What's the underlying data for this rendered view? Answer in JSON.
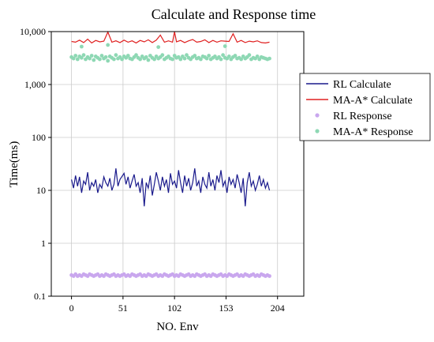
{
  "chart_data": {
    "type": "line",
    "title": "Calculate and Response time",
    "xlabel": "NO. Env",
    "ylabel": "Time(ms)",
    "x_ticks": [
      0,
      51,
      102,
      153,
      204
    ],
    "x_tick_labels": [
      "0",
      "51",
      "102",
      "153",
      "204"
    ],
    "xlim": [
      -20,
      230
    ],
    "y_scale": "log",
    "ylim": [
      0.1,
      10000
    ],
    "y_ticks": [
      0.1,
      1,
      10,
      100,
      1000,
      10000
    ],
    "y_tick_labels": [
      "0.1",
      "1",
      "10",
      "100",
      "1,000",
      "10,000"
    ],
    "grid": true,
    "legend_position": "right",
    "series": [
      {
        "name": "RL Calculate",
        "kind": "line",
        "color": "#1a1a8c",
        "x": [
          0,
          2,
          4,
          6,
          8,
          10,
          12,
          14,
          16,
          18,
          20,
          22,
          24,
          26,
          28,
          30,
          32,
          34,
          36,
          38,
          40,
          42,
          44,
          46,
          48,
          52,
          54,
          56,
          58,
          60,
          62,
          64,
          66,
          68,
          70,
          72,
          74,
          76,
          78,
          80,
          82,
          84,
          86,
          88,
          90,
          92,
          94,
          96,
          98,
          100,
          102,
          104,
          106,
          108,
          110,
          112,
          114,
          116,
          118,
          120,
          122,
          124,
          126,
          128,
          130,
          132,
          134,
          136,
          138,
          140,
          142,
          144,
          146,
          148,
          150,
          152,
          154,
          156,
          158,
          160,
          162,
          164,
          166,
          168,
          170,
          172,
          174,
          176,
          178,
          180,
          182,
          184,
          186,
          188,
          190,
          192,
          194,
          196
        ],
        "values": [
          16,
          11,
          19,
          12,
          18,
          9,
          15,
          13,
          22,
          10,
          14,
          12,
          16,
          9,
          13,
          11,
          18,
          14,
          12,
          17,
          10,
          13,
          26,
          12,
          16,
          21,
          13,
          18,
          11,
          15,
          20,
          12,
          14,
          9,
          17,
          5,
          14,
          11,
          19,
          8,
          13,
          22,
          15,
          10,
          18,
          12,
          16,
          9,
          21,
          13,
          15,
          11,
          24,
          14,
          9,
          19,
          12,
          17,
          10,
          14,
          26,
          12,
          15,
          9,
          18,
          13,
          11,
          22,
          12,
          16,
          10,
          19,
          14,
          24,
          12,
          15,
          9,
          18,
          13,
          16,
          11,
          20,
          14,
          9,
          17,
          5,
          14,
          22,
          12,
          15,
          10,
          13,
          19,
          12,
          16,
          11,
          14,
          10
        ]
      },
      {
        "name": "MA-A* Calculate",
        "kind": "line",
        "color": "#e02020",
        "x": [
          0,
          4,
          8,
          12,
          16,
          20,
          24,
          28,
          32,
          36,
          40,
          44,
          48,
          52,
          56,
          60,
          64,
          68,
          72,
          76,
          80,
          84,
          88,
          92,
          96,
          100,
          102,
          104,
          108,
          112,
          116,
          120,
          124,
          128,
          132,
          136,
          140,
          144,
          148,
          152,
          156,
          160,
          164,
          168,
          172,
          176,
          180,
          184,
          188,
          192,
          196
        ],
        "values": [
          6500,
          6300,
          6900,
          6200,
          7200,
          6100,
          6800,
          6400,
          6600,
          9800,
          6300,
          6700,
          6200,
          6900,
          6300,
          6700,
          6100,
          6800,
          6400,
          7000,
          6200,
          6900,
          8600,
          6300,
          6700,
          6300,
          9900,
          6400,
          6800,
          6200,
          6700,
          7100,
          6300,
          6500,
          7000,
          6200,
          6800,
          6300,
          6700,
          6600,
          6500,
          9100,
          6300,
          6800,
          6200,
          6600,
          6400,
          6700,
          6200,
          6100,
          6300
        ]
      },
      {
        "name": "RL Response",
        "kind": "scatter",
        "color": "#c9a7ee",
        "x": [
          0,
          2,
          4,
          6,
          8,
          10,
          12,
          14,
          16,
          18,
          20,
          22,
          24,
          26,
          28,
          30,
          32,
          34,
          36,
          38,
          40,
          42,
          44,
          46,
          48,
          50,
          52,
          54,
          56,
          58,
          60,
          62,
          64,
          66,
          68,
          70,
          72,
          74,
          76,
          78,
          80,
          82,
          84,
          86,
          88,
          90,
          92,
          94,
          96,
          98,
          100,
          102,
          104,
          106,
          108,
          110,
          112,
          114,
          116,
          118,
          120,
          122,
          124,
          126,
          128,
          130,
          132,
          134,
          136,
          138,
          140,
          142,
          144,
          146,
          148,
          150,
          152,
          154,
          156,
          158,
          160,
          162,
          164,
          166,
          168,
          170,
          172,
          174,
          176,
          178,
          180,
          182,
          184,
          186,
          188,
          190,
          192,
          194,
          196
        ],
        "values": [
          0.25,
          0.24,
          0.26,
          0.24,
          0.25,
          0.24,
          0.26,
          0.25,
          0.24,
          0.26,
          0.25,
          0.24,
          0.25,
          0.26,
          0.24,
          0.25,
          0.24,
          0.26,
          0.25,
          0.24,
          0.25,
          0.26,
          0.24,
          0.25,
          0.24,
          0.25,
          0.26,
          0.24,
          0.25,
          0.24,
          0.26,
          0.25,
          0.24,
          0.25,
          0.26,
          0.24,
          0.25,
          0.24,
          0.26,
          0.25,
          0.24,
          0.25,
          0.26,
          0.24,
          0.25,
          0.24,
          0.26,
          0.25,
          0.24,
          0.25,
          0.26,
          0.24,
          0.25,
          0.24,
          0.26,
          0.25,
          0.24,
          0.25,
          0.26,
          0.24,
          0.25,
          0.24,
          0.26,
          0.25,
          0.24,
          0.25,
          0.26,
          0.24,
          0.25,
          0.24,
          0.26,
          0.25,
          0.24,
          0.25,
          0.26,
          0.24,
          0.25,
          0.24,
          0.26,
          0.25,
          0.24,
          0.25,
          0.26,
          0.24,
          0.25,
          0.24,
          0.26,
          0.25,
          0.24,
          0.25,
          0.26,
          0.24,
          0.25,
          0.24,
          0.26,
          0.25,
          0.24,
          0.25,
          0.24
        ]
      },
      {
        "name": "MA-A* Response",
        "kind": "scatter",
        "color": "#8ed8b4",
        "x": [
          0,
          2,
          4,
          6,
          8,
          10,
          12,
          14,
          16,
          18,
          20,
          22,
          24,
          26,
          28,
          30,
          32,
          34,
          36,
          38,
          40,
          42,
          44,
          46,
          48,
          50,
          52,
          54,
          56,
          58,
          60,
          62,
          64,
          66,
          68,
          70,
          72,
          74,
          76,
          78,
          80,
          82,
          84,
          86,
          88,
          90,
          92,
          94,
          96,
          98,
          100,
          102,
          104,
          106,
          108,
          110,
          112,
          114,
          116,
          118,
          120,
          122,
          124,
          126,
          128,
          130,
          132,
          134,
          136,
          138,
          140,
          142,
          144,
          146,
          148,
          150,
          152,
          154,
          156,
          158,
          160,
          162,
          164,
          166,
          168,
          170,
          172,
          174,
          176,
          178,
          180,
          182,
          184,
          186,
          188,
          190,
          192,
          194,
          196,
          10,
          36,
          86,
          152
        ],
        "values": [
          3300,
          3100,
          3500,
          3000,
          3400,
          3200,
          3600,
          3000,
          3300,
          3100,
          3500,
          2900,
          3400,
          3200,
          3000,
          3500,
          3100,
          3300,
          2800,
          3400,
          3200,
          3000,
          3600,
          3100,
          3300,
          3000,
          3400,
          3200,
          3500,
          3100,
          3000,
          3300,
          3600,
          3200,
          3000,
          3400,
          3100,
          3300,
          2900,
          3500,
          3200,
          3000,
          3400,
          3100,
          3300,
          3600,
          3000,
          3200,
          3400,
          3100,
          3000,
          3500,
          3200,
          3300,
          3000,
          3400,
          3100,
          3600,
          3200,
          3000,
          3300,
          3500,
          3100,
          3200,
          3000,
          3400,
          3300,
          3100,
          3500,
          3000,
          3200,
          3400,
          3100,
          3300,
          3000,
          3600,
          3200,
          3100,
          3400,
          3000,
          3300,
          3500,
          3100,
          3200,
          3000,
          3400,
          3100,
          3300,
          3600,
          3000,
          3200,
          3100,
          3400,
          3000,
          3300,
          3200,
          3100,
          3000,
          3100,
          5200,
          5600,
          5100,
          5300
        ]
      }
    ]
  }
}
